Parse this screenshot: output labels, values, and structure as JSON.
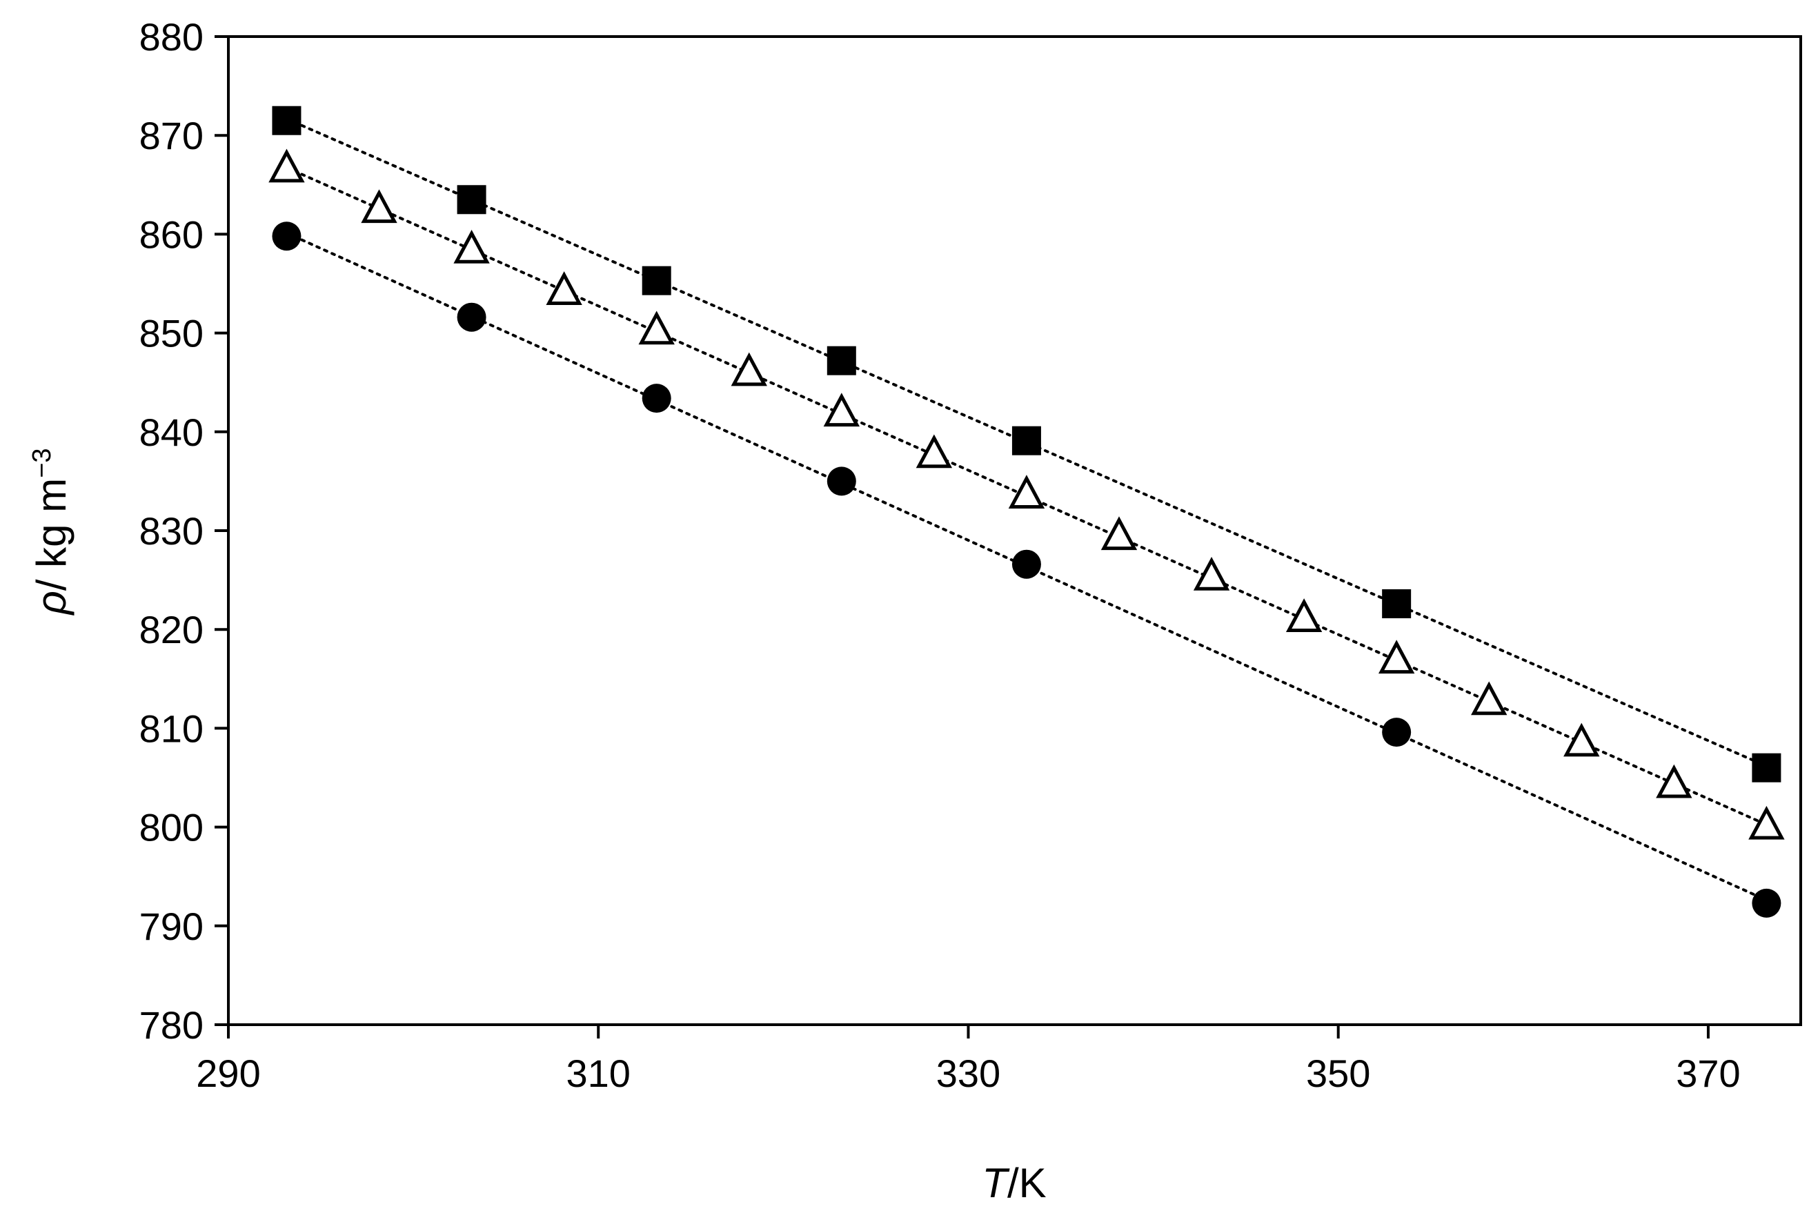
{
  "chart_data": {
    "type": "scatter",
    "xlabel": {
      "symbol": "T",
      "unit": "/K"
    },
    "ylabel": {
      "symbol": "ρ",
      "unit": "/ kg m",
      "exponent": "−3"
    },
    "xlim": [
      290,
      375
    ],
    "ylim": [
      780,
      880
    ],
    "xticks": [
      "290",
      "310",
      "330",
      "350",
      "370"
    ],
    "yticks": [
      "780",
      "790",
      "800",
      "810",
      "820",
      "830",
      "840",
      "850",
      "860",
      "870",
      "880"
    ],
    "xtick_values": [
      290,
      310,
      330,
      350,
      370
    ],
    "ytick_values": [
      780,
      790,
      800,
      810,
      820,
      830,
      840,
      850,
      860,
      870,
      880
    ],
    "grid": false,
    "legend": "none",
    "series": [
      {
        "marker": "filled-square",
        "color": "#000000",
        "trendline": "dotted-linear",
        "x": [
          293.15,
          303.15,
          313.15,
          323.15,
          333.15,
          353.15,
          373.15
        ],
        "y": [
          871.5,
          863.5,
          855.3,
          847.2,
          839.1,
          822.6,
          806.0
        ]
      },
      {
        "marker": "open-triangle",
        "color": "#000000",
        "trendline": "dotted-linear",
        "x": [
          293.15,
          298.15,
          303.15,
          308.15,
          313.15,
          318.15,
          323.15,
          328.15,
          333.15,
          338.15,
          343.15,
          348.15,
          353.15,
          358.15,
          363.15,
          368.15,
          373.15
        ],
        "y": [
          866.6,
          862.5,
          858.4,
          854.2,
          850.2,
          846.0,
          841.9,
          837.7,
          833.6,
          829.4,
          825.3,
          821.1,
          816.9,
          812.7,
          808.5,
          804.3,
          800.1
        ]
      },
      {
        "marker": "filled-circle",
        "color": "#000000",
        "trendline": "dotted-linear",
        "x": [
          293.15,
          303.15,
          313.15,
          323.15,
          333.15,
          353.15,
          373.15
        ],
        "y": [
          859.8,
          851.6,
          843.4,
          835.0,
          826.6,
          809.6,
          792.3
        ]
      }
    ]
  }
}
